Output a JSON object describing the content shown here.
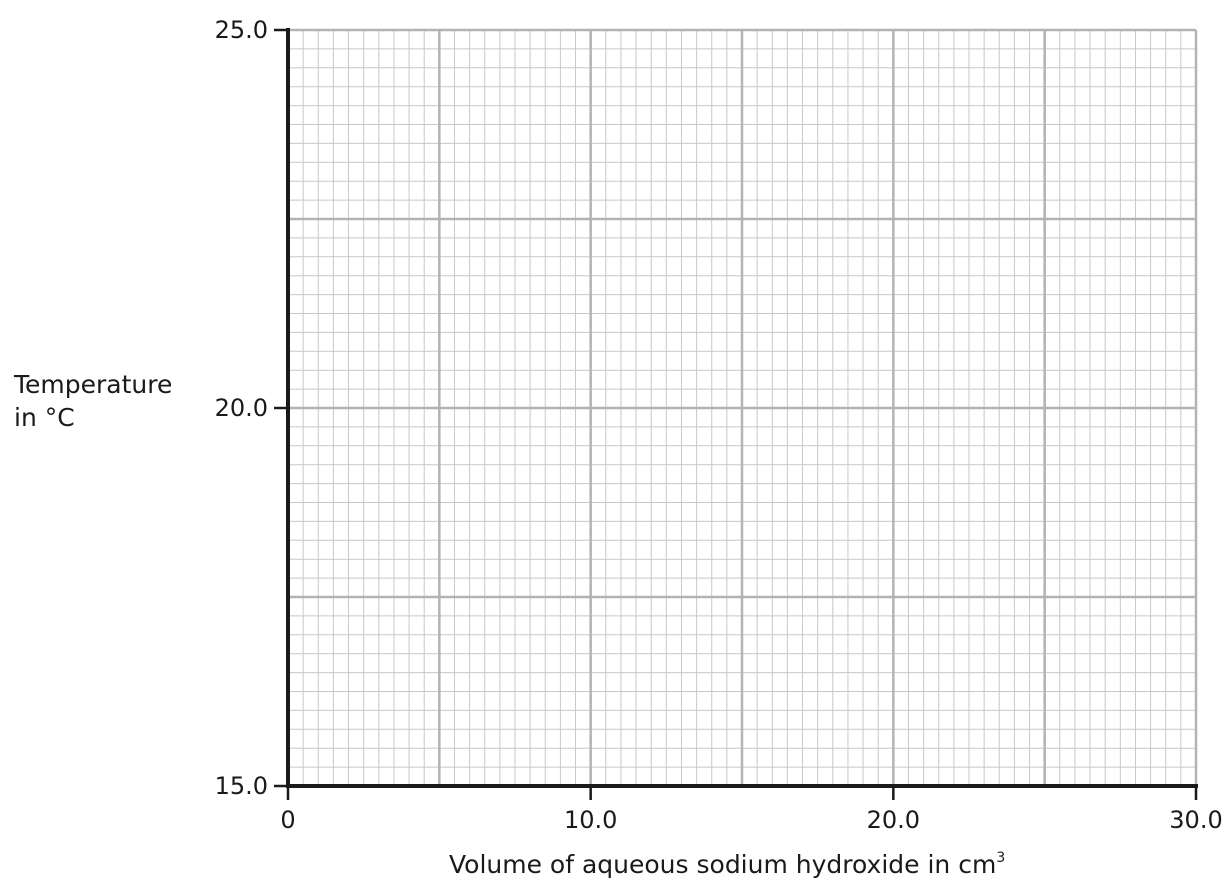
{
  "chart_data": {
    "type": "line",
    "title": "",
    "xlabel": {
      "text": "Volume of aqueous sodium hydroxide in cm",
      "superscript": "3"
    },
    "ylabel": [
      "Temperature",
      "in °C"
    ],
    "xlim": [
      0,
      30
    ],
    "ylim": [
      15,
      25
    ],
    "x_ticks": [
      0,
      10,
      20,
      30
    ],
    "x_tick_labels": [
      "0",
      "10.0",
      "20.0",
      "30.0"
    ],
    "y_ticks": [
      15,
      20,
      25
    ],
    "y_tick_labels": [
      "15.0",
      "20.0",
      "25.0"
    ],
    "grid": true,
    "grid_major_x": 5,
    "grid_major_y": 2.5,
    "grid_minor_x": 0.5,
    "grid_minor_y": 0.25,
    "series": []
  },
  "colors": {
    "axis": "#1a1a1a",
    "grid_minor": "#c8c8c8",
    "grid_major": "#b3b3b3"
  }
}
